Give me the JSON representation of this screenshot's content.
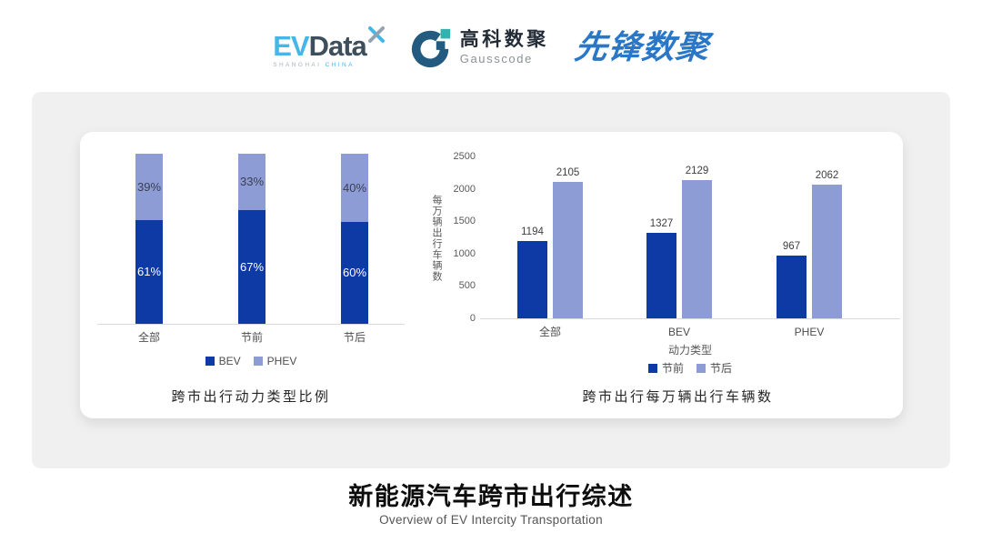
{
  "header": {
    "evdata": {
      "ev": "EV",
      "data": "Data",
      "sub_left": "SHANGHAI",
      "sub_right": "CHINA"
    },
    "gausscode": {
      "cn": "高科数聚",
      "en": "Gausscode"
    },
    "pioneer": {
      "text": "先锋数聚"
    }
  },
  "colors": {
    "primary_dark": "#0d3aa5",
    "primary_light": "#8e9cd5",
    "axis_line": "#d9d9d9",
    "tick_text": "#595959",
    "evdata_cyan": "#45b6e8",
    "evdata_slate": "#3d4e5c",
    "gauss_ring": "#235a80",
    "gauss_teal": "#2fb5ae",
    "pioneer_blue": "#2b77c7"
  },
  "chart_data": [
    {
      "type": "bar",
      "variant": "stacked-percent",
      "title": "跨市出行动力类型比例",
      "categories": [
        "全部",
        "节前",
        "节后"
      ],
      "series": [
        {
          "name": "BEV",
          "values": [
            61,
            67,
            60
          ]
        },
        {
          "name": "PHEV",
          "values": [
            39,
            33,
            40
          ]
        }
      ],
      "value_suffix": "%",
      "ylim": [
        0,
        100
      ],
      "grid": false,
      "legend_position": "bottom"
    },
    {
      "type": "bar",
      "variant": "grouped",
      "title": "跨市出行每万辆出行车辆数",
      "categories": [
        "全部",
        "BEV",
        "PHEV"
      ],
      "series": [
        {
          "name": "节前",
          "values": [
            1194,
            1327,
            967
          ]
        },
        {
          "name": "节后",
          "values": [
            2105,
            2129,
            2062
          ]
        }
      ],
      "xlabel": "动力类型",
      "ylabel": "每万辆出行车辆数",
      "ylim": [
        0,
        2500
      ],
      "yticks": [
        0,
        500,
        1000,
        1500,
        2000,
        2500
      ],
      "grid": false,
      "legend_position": "bottom"
    }
  ],
  "footer": {
    "title": "新能源汽车跨市出行综述",
    "subtitle": "Overview of EV Intercity Transportation"
  }
}
